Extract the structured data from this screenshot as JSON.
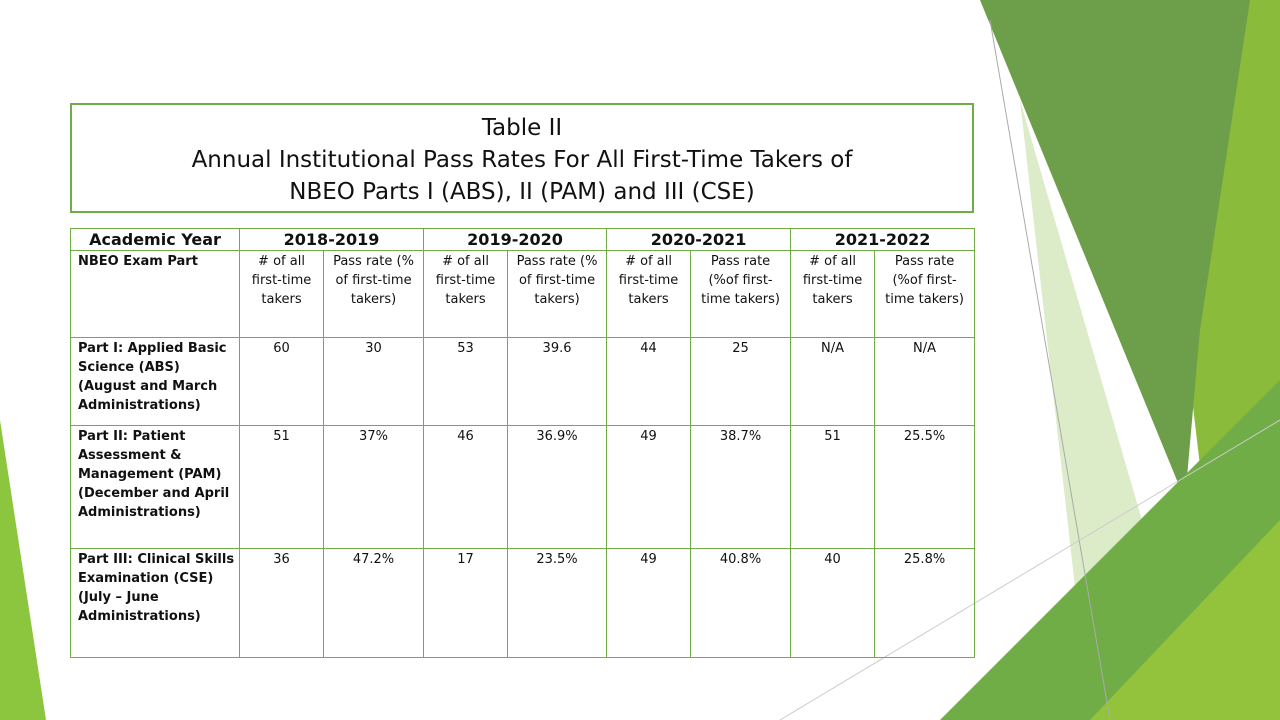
{
  "title": {
    "line1": "Table II",
    "line2": "Annual Institutional Pass Rates For All First-Time Takers of",
    "line3": "NBEO Parts I (ABS), II (PAM) and III (CSE)"
  },
  "table": {
    "year_header": "Academic Year",
    "years": [
      "2018-2019",
      "2019-2020",
      "2020-2021",
      "2021-2022"
    ],
    "sub_header": "NBEO Exam Part",
    "column_headers": [
      [
        "# of all first-time takers",
        "Pass rate (% of first-time takers)"
      ],
      [
        "# of all first-time takers",
        "Pass rate (% of first-time takers)"
      ],
      [
        "# of all first-time takers",
        "Pass rate (%of first-time takers)"
      ],
      [
        "# of all first-time takers",
        "Pass rate (%of first-time takers)"
      ]
    ],
    "rows": [
      {
        "label": [
          "Part I: Applied Basic Science (ABS)",
          "(August and March Administrations)"
        ],
        "cells": [
          60,
          30,
          53,
          39.6,
          44,
          25,
          "N/A",
          "N/A"
        ]
      },
      {
        "label": [
          "Part II: Patient Assessment & Management (PAM)",
          "(December and April Administrations)"
        ],
        "cells": [
          51,
          "37%",
          46,
          "36.9%",
          49,
          "38.7%",
          51,
          "25.5%"
        ]
      },
      {
        "label": [
          "Part III: Clinical Skills Examination (CSE)",
          "(July – June Administrations)"
        ],
        "cells": [
          36,
          "47.2%",
          17,
          "23.5%",
          49,
          "40.8%",
          40,
          "25.8%"
        ]
      }
    ]
  }
}
